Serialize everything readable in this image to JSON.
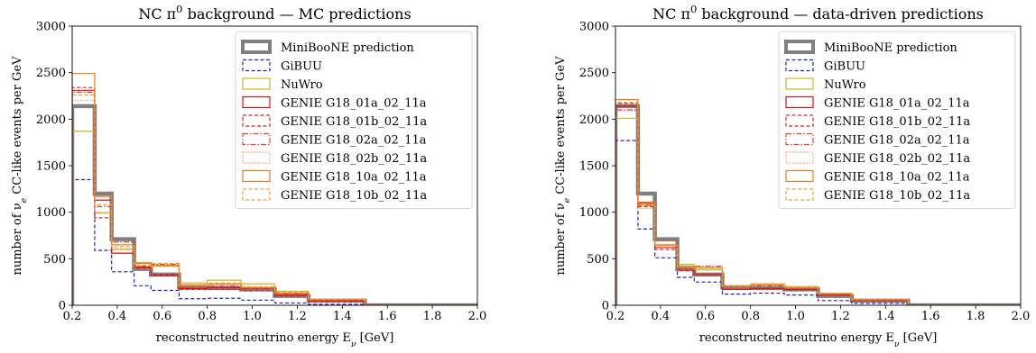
{
  "chart_data": [
    {
      "type": "line",
      "title": "NC π⁰ background — MC predictions",
      "xlabel": "reconstructed neutrino energy E_ν [GeV]",
      "ylabel": "number of ν_e CC-like events per GeV",
      "xlim": [
        0.2,
        2.0
      ],
      "ylim": [
        0,
        3000
      ],
      "xticks": [
        "0.2",
        "0.4",
        "0.6",
        "0.8",
        "1.0",
        "1.2",
        "1.4",
        "1.6",
        "1.8",
        "2.0"
      ],
      "yticks": [
        "0",
        "500",
        "1000",
        "1500",
        "2000",
        "2500",
        "3000"
      ],
      "bin_edges": [
        0.2,
        0.3,
        0.375,
        0.475,
        0.55,
        0.675,
        0.8,
        0.95,
        1.1,
        1.25,
        1.5,
        2.0
      ],
      "legend_position": "top-right",
      "series": [
        {
          "name": "MiniBooNE prediction",
          "color": "#808080",
          "dash": "solid",
          "width": 4.5,
          "values": [
            2140,
            1200,
            710,
            390,
            330,
            190,
            185,
            170,
            100,
            50,
            0
          ]
        },
        {
          "name": "GiBUU",
          "color": "#2222bb",
          "dash": "dashed",
          "width": 1.2,
          "values": [
            1350,
            590,
            360,
            210,
            160,
            70,
            75,
            55,
            25,
            10,
            0
          ]
        },
        {
          "name": "NuWro",
          "color": "#c8b820",
          "dash": "solid",
          "width": 1.2,
          "values": [
            1870,
            990,
            600,
            460,
            420,
            240,
            270,
            230,
            150,
            60,
            0
          ]
        },
        {
          "name": "GENIE G18_01a_02_11a",
          "color": "#e01010",
          "dash": "solid",
          "width": 1.2,
          "values": [
            2310,
            1130,
            560,
            410,
            320,
            180,
            190,
            180,
            110,
            50,
            0
          ]
        },
        {
          "name": "GENIE G18_01b_02_11a",
          "color": "#e02020",
          "dash": "dashed",
          "width": 1.2,
          "values": [
            2340,
            940,
            560,
            400,
            330,
            170,
            170,
            160,
            100,
            40,
            0
          ]
        },
        {
          "name": "GENIE G18_02a_02_11a",
          "color": "#e84030",
          "dash": "dashdot",
          "width": 1.2,
          "values": [
            2290,
            1060,
            680,
            420,
            440,
            200,
            210,
            180,
            120,
            60,
            0
          ]
        },
        {
          "name": "GENIE G18_02b_02_11a",
          "color": "#f08060",
          "dash": "dotted",
          "width": 1.2,
          "values": [
            2200,
            1000,
            610,
            380,
            420,
            210,
            230,
            200,
            130,
            60,
            0
          ]
        },
        {
          "name": "GENIE G18_10a_02_11a",
          "color": "#f07818",
          "dash": "solid",
          "width": 1.2,
          "values": [
            2490,
            1170,
            650,
            450,
            430,
            220,
            230,
            190,
            130,
            60,
            0
          ]
        },
        {
          "name": "GENIE G18_10b_02_11a",
          "color": "#f0a030",
          "dash": "dashed",
          "width": 1.2,
          "values": [
            2260,
            1080,
            630,
            430,
            450,
            210,
            240,
            200,
            140,
            60,
            0
          ]
        }
      ]
    },
    {
      "type": "line",
      "title": "NC π⁰ background — data-driven predictions",
      "xlabel": "reconstructed neutrino energy E_ν [GeV]",
      "ylabel": "number of ν_e CC-like events per GeV",
      "xlim": [
        0.2,
        2.0
      ],
      "ylim": [
        0,
        3000
      ],
      "xticks": [
        "0.2",
        "0.4",
        "0.6",
        "0.8",
        "1.0",
        "1.2",
        "1.4",
        "1.6",
        "1.8",
        "2.0"
      ],
      "yticks": [
        "0",
        "500",
        "1000",
        "1500",
        "2000",
        "2500",
        "3000"
      ],
      "bin_edges": [
        0.2,
        0.3,
        0.375,
        0.475,
        0.55,
        0.675,
        0.8,
        0.95,
        1.1,
        1.25,
        1.5,
        2.0
      ],
      "legend_position": "top-right",
      "series": [
        {
          "name": "MiniBooNE prediction",
          "color": "#808080",
          "dash": "solid",
          "width": 4.5,
          "values": [
            2140,
            1200,
            710,
            390,
            330,
            190,
            185,
            170,
            100,
            50,
            0
          ]
        },
        {
          "name": "GiBUU",
          "color": "#2222bb",
          "dash": "dashed",
          "width": 1.2,
          "values": [
            1770,
            820,
            510,
            300,
            250,
            120,
            130,
            110,
            50,
            20,
            0
          ]
        },
        {
          "name": "NuWro",
          "color": "#c8b820",
          "dash": "solid",
          "width": 1.2,
          "values": [
            2010,
            1070,
            640,
            440,
            380,
            210,
            230,
            200,
            120,
            50,
            0
          ]
        },
        {
          "name": "GENIE G18_01a_02_11a",
          "color": "#e01010",
          "dash": "solid",
          "width": 1.2,
          "values": [
            2140,
            1100,
            620,
            380,
            330,
            170,
            180,
            170,
            110,
            50,
            0
          ]
        },
        {
          "name": "GENIE G18_01b_02_11a",
          "color": "#e02020",
          "dash": "dashed",
          "width": 1.2,
          "values": [
            2170,
            1060,
            600,
            370,
            330,
            170,
            175,
            165,
            110,
            50,
            0
          ]
        },
        {
          "name": "GENIE G18_02a_02_11a",
          "color": "#e84030",
          "dash": "dashdot",
          "width": 1.2,
          "values": [
            2100,
            1080,
            700,
            400,
            420,
            200,
            210,
            190,
            120,
            60,
            0
          ]
        },
        {
          "name": "GENIE G18_02b_02_11a",
          "color": "#f08060",
          "dash": "dotted",
          "width": 1.2,
          "values": [
            2090,
            1040,
            640,
            380,
            400,
            200,
            220,
            195,
            130,
            60,
            0
          ]
        },
        {
          "name": "GENIE G18_10a_02_11a",
          "color": "#f07818",
          "dash": "solid",
          "width": 1.2,
          "values": [
            2210,
            1110,
            650,
            420,
            400,
            210,
            220,
            190,
            125,
            60,
            0
          ]
        },
        {
          "name": "GENIE G18_10b_02_11a",
          "color": "#f0a030",
          "dash": "dashed",
          "width": 1.2,
          "values": [
            2180,
            1090,
            640,
            410,
            410,
            205,
            225,
            195,
            130,
            60,
            0
          ]
        }
      ]
    }
  ]
}
